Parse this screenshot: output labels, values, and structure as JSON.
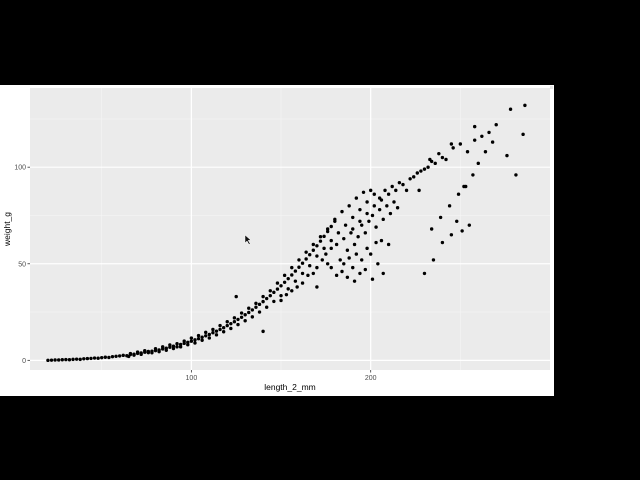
{
  "theme": {
    "panel_bg": "#ebebeb",
    "grid_major": "#ffffff",
    "grid_minor": "#f5f5f5",
    "point_color": "#000000",
    "page_bg": "#000000",
    "plot_bg": "#ffffff"
  },
  "cursor": {
    "icon": "arrow-cursor-icon"
  },
  "chart_data": {
    "type": "scatter",
    "title": "",
    "xlabel": "length_2_mm",
    "ylabel": "weight_g",
    "xlim": [
      10,
      300
    ],
    "ylim": [
      -5,
      141
    ],
    "x_ticks": [
      100,
      200
    ],
    "x_tick_labels": [
      "100",
      "200"
    ],
    "y_ticks": [
      0,
      50,
      100
    ],
    "y_tick_labels": [
      "0",
      "50",
      "100"
    ],
    "grid": true,
    "legend": "none",
    "notes": "dense cloud of several thousand points following an exponential curve; sampled representative points listed",
    "series": [
      {
        "points": [
          [
            20,
            0
          ],
          [
            22,
            0.1
          ],
          [
            24,
            0.2
          ],
          [
            26,
            0.2
          ],
          [
            28,
            0.3
          ],
          [
            30,
            0.4
          ],
          [
            32,
            0.3
          ],
          [
            34,
            0.5
          ],
          [
            36,
            0.6
          ],
          [
            38,
            0.5
          ],
          [
            40,
            0.8
          ],
          [
            42,
            0.9
          ],
          [
            44,
            1.0
          ],
          [
            46,
            1.2
          ],
          [
            48,
            1.1
          ],
          [
            50,
            1.4
          ],
          [
            52,
            1.6
          ],
          [
            54,
            1.5
          ],
          [
            56,
            1.9
          ],
          [
            58,
            2.1
          ],
          [
            60,
            2.3
          ],
          [
            62,
            2.6
          ],
          [
            64,
            2.4
          ],
          [
            66,
            3.0
          ],
          [
            68,
            3.2
          ],
          [
            70,
            3.6
          ],
          [
            72,
            3.8
          ],
          [
            74,
            4.2
          ],
          [
            76,
            4.0
          ],
          [
            78,
            4.7
          ],
          [
            80,
            5.0
          ],
          [
            82,
            5.4
          ],
          [
            84,
            5.9
          ],
          [
            86,
            6.3
          ],
          [
            88,
            6.8
          ],
          [
            90,
            7.3
          ],
          [
            92,
            7.0
          ],
          [
            94,
            8.2
          ],
          [
            96,
            8.8
          ],
          [
            98,
            9.3
          ],
          [
            100,
            9.9
          ],
          [
            102,
            10.6
          ],
          [
            104,
            11.2
          ],
          [
            106,
            12.0
          ],
          [
            108,
            12.7
          ],
          [
            110,
            13.4
          ],
          [
            112,
            14.3
          ],
          [
            114,
            15.1
          ],
          [
            116,
            16.0
          ],
          [
            118,
            16.9
          ],
          [
            120,
            18.0
          ],
          [
            122,
            19.0
          ],
          [
            124,
            20.0
          ],
          [
            126,
            21.2
          ],
          [
            128,
            22.3
          ],
          [
            130,
            23.6
          ],
          [
            132,
            24.8
          ],
          [
            134,
            26.1
          ],
          [
            136,
            27.5
          ],
          [
            138,
            29.0
          ],
          [
            140,
            30.4
          ],
          [
            142,
            32.0
          ],
          [
            144,
            33.5
          ],
          [
            146,
            35.2
          ],
          [
            148,
            36.9
          ],
          [
            150,
            38.6
          ],
          [
            152,
            40.4
          ],
          [
            154,
            42.3
          ],
          [
            156,
            44.2
          ],
          [
            158,
            46.2
          ],
          [
            160,
            48.2
          ],
          [
            162,
            50.3
          ],
          [
            164,
            52.5
          ],
          [
            166,
            54.7
          ],
          [
            168,
            57.0
          ],
          [
            170,
            59.3
          ],
          [
            172,
            61.7
          ],
          [
            174,
            64.2
          ],
          [
            176,
            66.7
          ],
          [
            178,
            69.3
          ],
          [
            180,
            72.0
          ],
          [
            65,
            2.0
          ],
          [
            66,
            3.5
          ],
          [
            68,
            2.7
          ],
          [
            70,
            4.3
          ],
          [
            72,
            3.1
          ],
          [
            74,
            5.0
          ],
          [
            76,
            4.6
          ],
          [
            78,
            3.9
          ],
          [
            80,
            6.0
          ],
          [
            82,
            4.5
          ],
          [
            84,
            7.0
          ],
          [
            86,
            5.2
          ],
          [
            88,
            8.0
          ],
          [
            90,
            6.1
          ],
          [
            92,
            8.6
          ],
          [
            94,
            7.0
          ],
          [
            96,
            10.0
          ],
          [
            98,
            8.1
          ],
          [
            100,
            11.5
          ],
          [
            102,
            9.0
          ],
          [
            104,
            12.8
          ],
          [
            106,
            10.4
          ],
          [
            108,
            14.5
          ],
          [
            110,
            11.6
          ],
          [
            112,
            16.0
          ],
          [
            114,
            13.2
          ],
          [
            116,
            18.0
          ],
          [
            118,
            14.8
          ],
          [
            120,
            20.0
          ],
          [
            122,
            16.5
          ],
          [
            124,
            22.0
          ],
          [
            126,
            18.5
          ],
          [
            128,
            24.5
          ],
          [
            130,
            20.5
          ],
          [
            132,
            27.0
          ],
          [
            134,
            22.5
          ],
          [
            136,
            29.5
          ],
          [
            138,
            25.0
          ],
          [
            140,
            33.0
          ],
          [
            142,
            27.5
          ],
          [
            144,
            36.0
          ],
          [
            146,
            30.5
          ],
          [
            148,
            40.0
          ],
          [
            150,
            33.5
          ],
          [
            152,
            44.0
          ],
          [
            154,
            37.0
          ],
          [
            156,
            48.0
          ],
          [
            158,
            41.0
          ],
          [
            160,
            52.0
          ],
          [
            162,
            45.0
          ],
          [
            164,
            56.0
          ],
          [
            166,
            49.0
          ],
          [
            168,
            60.0
          ],
          [
            170,
            54.0
          ],
          [
            172,
            64.0
          ],
          [
            174,
            58.0
          ],
          [
            176,
            68.0
          ],
          [
            178,
            62.0
          ],
          [
            180,
            73.0
          ],
          [
            182,
            66.0
          ],
          [
            184,
            77.0
          ],
          [
            186,
            70.0
          ],
          [
            188,
            80.0
          ],
          [
            190,
            74.0
          ],
          [
            192,
            84.0
          ],
          [
            194,
            78.0
          ],
          [
            196,
            87.0
          ],
          [
            198,
            82.0
          ],
          [
            200,
            88.0
          ],
          [
            202,
            86.0
          ],
          [
            175,
            55
          ],
          [
            178,
            58
          ],
          [
            181,
            60
          ],
          [
            183,
            52
          ],
          [
            185,
            63
          ],
          [
            187,
            57
          ],
          [
            189,
            66
          ],
          [
            191,
            60
          ],
          [
            193,
            64
          ],
          [
            195,
            70
          ],
          [
            197,
            66
          ],
          [
            199,
            72
          ],
          [
            201,
            75
          ],
          [
            203,
            69
          ],
          [
            205,
            78
          ],
          [
            207,
            73
          ],
          [
            209,
            80
          ],
          [
            211,
            76
          ],
          [
            213,
            82
          ],
          [
            215,
            79
          ],
          [
            185,
            50
          ],
          [
            188,
            53
          ],
          [
            190,
            48
          ],
          [
            192,
            55
          ],
          [
            195,
            52
          ],
          [
            198,
            58
          ],
          [
            200,
            55
          ],
          [
            203,
            61
          ],
          [
            206,
            62
          ],
          [
            210,
            60
          ],
          [
            170,
            48
          ],
          [
            173,
            52
          ],
          [
            176,
            50
          ],
          [
            168,
            45
          ],
          [
            165,
            44
          ],
          [
            162,
            40
          ],
          [
            159,
            38
          ],
          [
            156,
            36
          ],
          [
            153,
            34
          ],
          [
            150,
            31
          ],
          [
            205,
            84
          ],
          [
            208,
            88
          ],
          [
            212,
            90
          ],
          [
            216,
            92
          ],
          [
            220,
            88
          ],
          [
            224,
            95
          ],
          [
            228,
            98
          ],
          [
            232,
            100
          ],
          [
            236,
            102
          ],
          [
            240,
            105
          ],
          [
            190,
            68
          ],
          [
            194,
            72
          ],
          [
            198,
            76
          ],
          [
            202,
            80
          ],
          [
            206,
            83
          ],
          [
            210,
            86
          ],
          [
            214,
            88
          ],
          [
            218,
            91
          ],
          [
            222,
            94
          ],
          [
            226,
            97
          ],
          [
            230,
            99
          ],
          [
            234,
            103
          ],
          [
            238,
            107
          ],
          [
            242,
            104
          ],
          [
            246,
            110
          ],
          [
            250,
            112
          ],
          [
            254,
            108
          ],
          [
            258,
            114
          ],
          [
            262,
            116
          ],
          [
            266,
            118
          ],
          [
            178,
            48
          ],
          [
            181,
            44
          ],
          [
            184,
            46
          ],
          [
            187,
            43
          ],
          [
            191,
            41
          ],
          [
            194,
            45
          ],
          [
            197,
            47
          ],
          [
            201,
            42
          ],
          [
            204,
            50
          ],
          [
            207,
            45
          ],
          [
            125,
            33
          ],
          [
            140,
            15
          ],
          [
            170,
            38
          ],
          [
            230,
            45
          ],
          [
            235,
            52
          ],
          [
            240,
            61
          ],
          [
            245,
            65
          ],
          [
            248,
            72
          ],
          [
            251,
            67
          ],
          [
            255,
            70
          ],
          [
            270,
            122
          ],
          [
            268,
            113
          ],
          [
            264,
            108
          ],
          [
            260,
            102
          ],
          [
            257,
            96
          ],
          [
            253,
            90
          ],
          [
            249,
            86
          ],
          [
            244,
            80
          ],
          [
            239,
            74
          ],
          [
            234,
            68
          ],
          [
            286,
            132
          ],
          [
            278,
            130
          ],
          [
            285,
            117
          ],
          [
            276,
            106
          ],
          [
            281,
            96
          ],
          [
            258,
            121
          ],
          [
            245,
            112
          ],
          [
            233,
            104
          ],
          [
            252,
            90
          ],
          [
            227,
            88
          ]
        ]
      }
    ]
  }
}
